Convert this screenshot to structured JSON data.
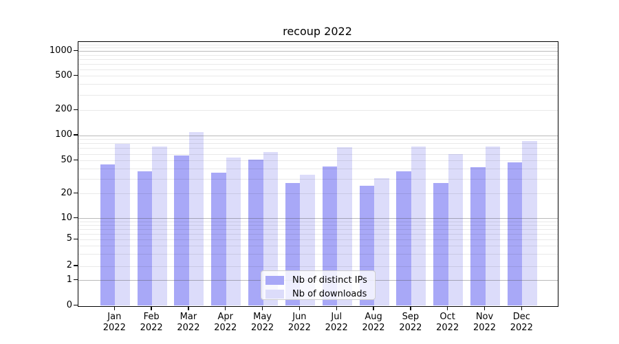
{
  "title": "recoup 2022",
  "chart_data": {
    "type": "bar",
    "title": "recoup 2022",
    "categories": [
      "Jan",
      "Feb",
      "Mar",
      "Apr",
      "May",
      "Jun",
      "Jul",
      "Aug",
      "Sep",
      "Oct",
      "Nov",
      "Dec"
    ],
    "category_year": "2022",
    "series": [
      {
        "name": "Nb of distinct IPs",
        "color": "#a8a8f7",
        "values": [
          45,
          37,
          58,
          36,
          52,
          27,
          43,
          25,
          37,
          27,
          42,
          48
        ]
      },
      {
        "name": "Nb of downloads",
        "color": "#dcdcfa",
        "values": [
          80,
          74,
          110,
          55,
          63,
          34,
          73,
          31,
          74,
          60,
          74,
          86
        ]
      }
    ],
    "xlabel": "",
    "ylabel": "",
    "scale": "symlog",
    "ylim": [
      0,
      1300
    ],
    "yticks": [
      0,
      1,
      2,
      5,
      10,
      20,
      50,
      100,
      200,
      500,
      1000
    ],
    "major_gridline_values": [
      1,
      10,
      100,
      1000
    ],
    "minor_gridline_values": [
      3,
      4,
      6,
      7,
      8,
      9,
      30,
      40,
      60,
      70,
      80,
      90,
      300,
      400,
      600,
      700,
      800,
      900,
      1100,
      1200
    ],
    "grid": "both, drawn above bars",
    "legend": {
      "position": "lower center",
      "entries": [
        "Nb of distinct IPs",
        "Nb of downloads"
      ]
    }
  },
  "colors": {
    "bar_distinct_ips": "#a8a8f7",
    "bar_downloads": "#dcdcfa",
    "major_grid": "#b0b0b0",
    "minor_grid": "#e8e8e8",
    "spine": "#000000",
    "legend_border": "#cccccc",
    "background": "#ffffff"
  }
}
